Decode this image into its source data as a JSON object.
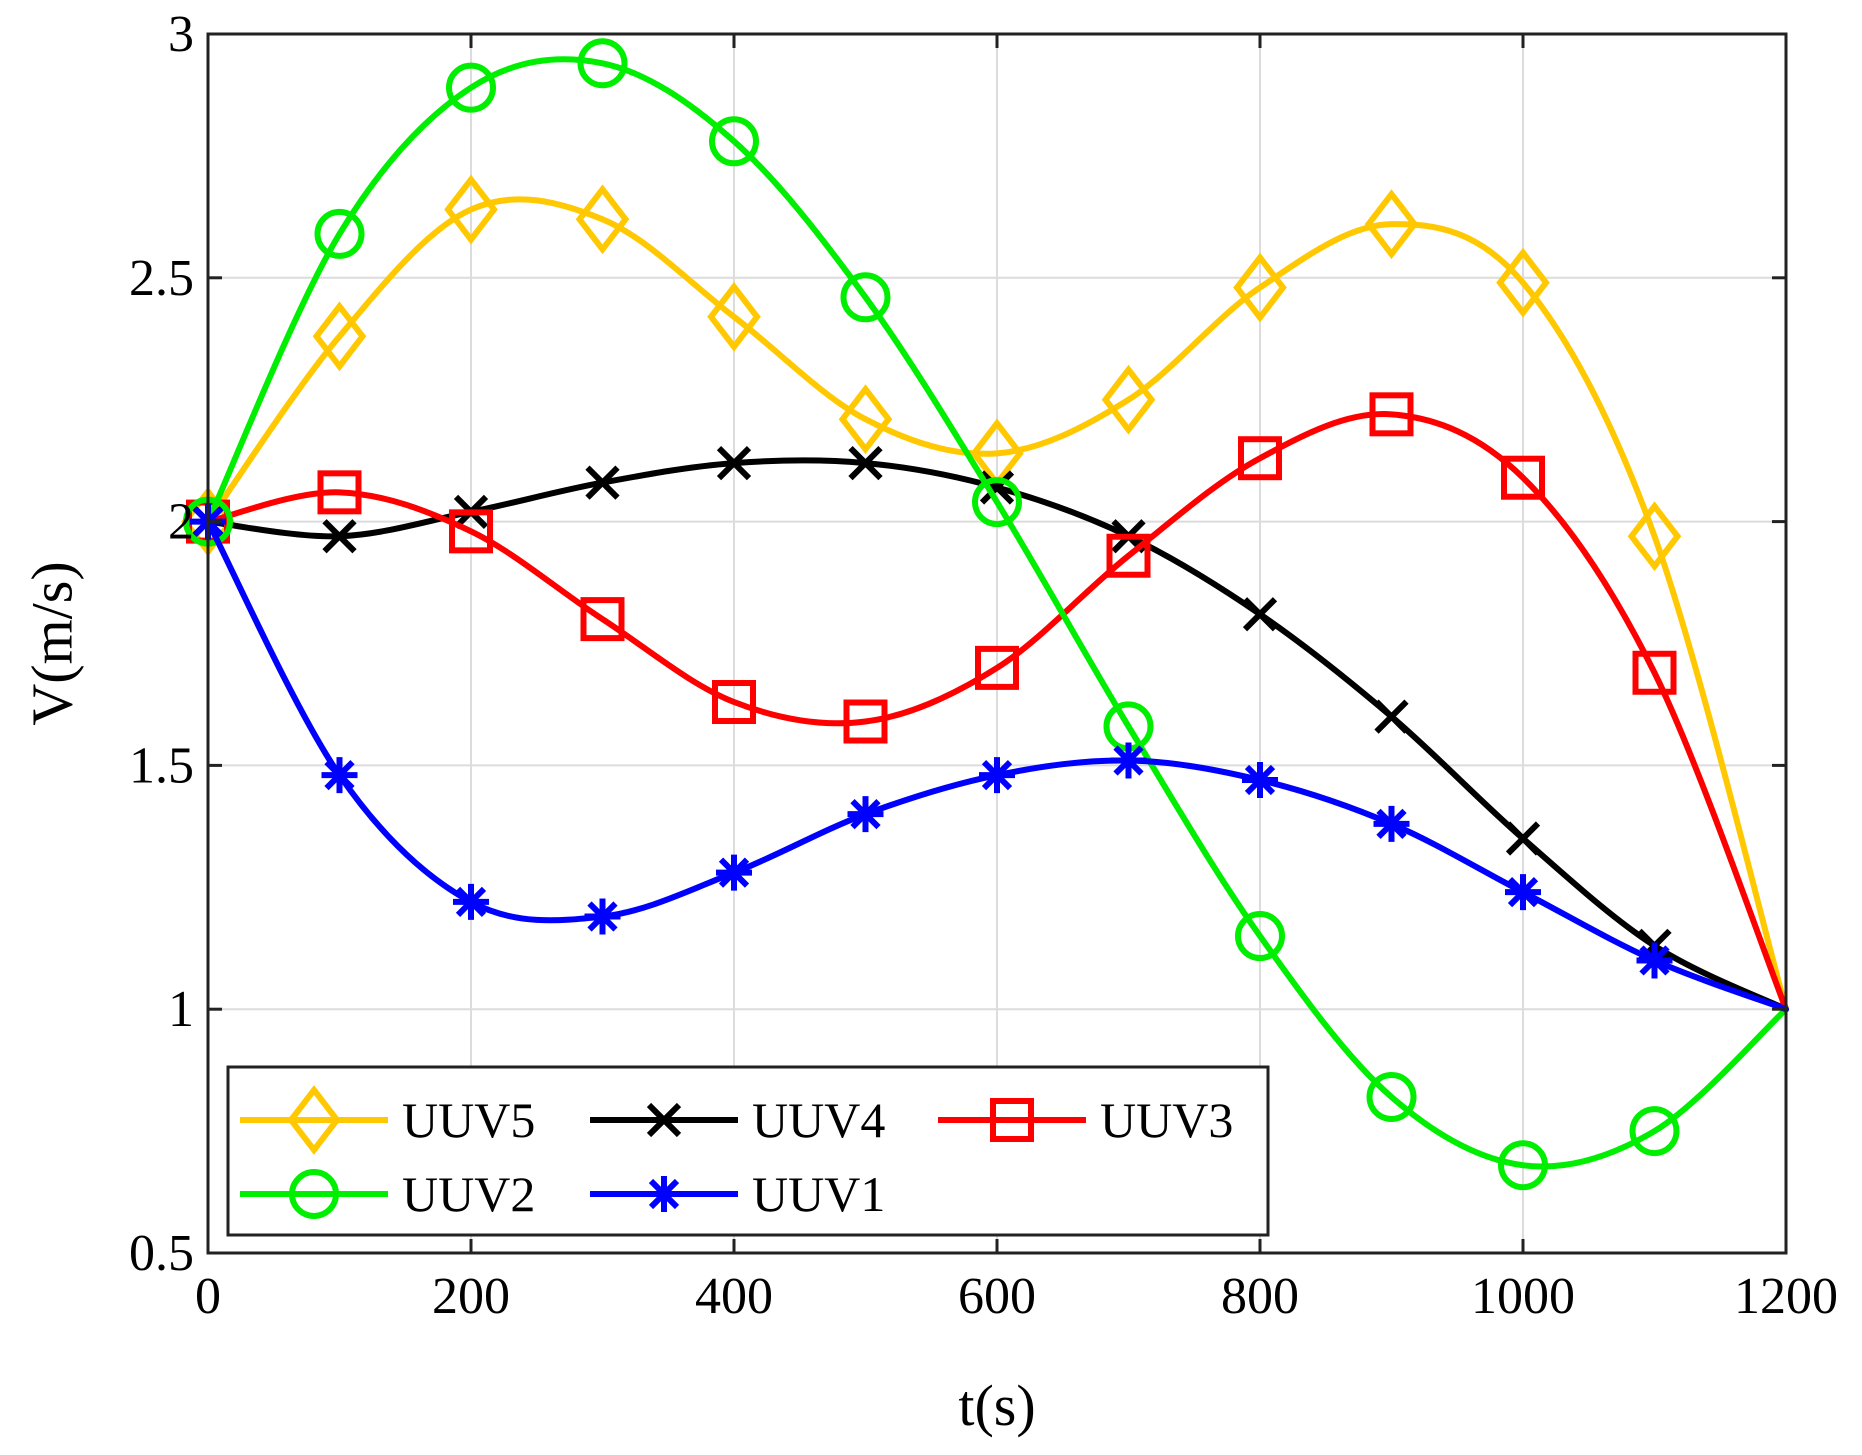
{
  "chart_data": {
    "type": "line",
    "xlabel": "t(s)",
    "ylabel": "V(m/s)",
    "xlim": [
      0,
      1200
    ],
    "ylim": [
      0.5,
      3
    ],
    "xticks": [
      0,
      200,
      400,
      600,
      800,
      1000,
      1200
    ],
    "yticks": [
      0.5,
      1,
      1.5,
      2,
      2.5,
      3
    ],
    "xtick_labels": [
      "0",
      "200",
      "400",
      "600",
      "800",
      "1000",
      "1200"
    ],
    "ytick_labels": [
      "0.5",
      "1",
      "1.5",
      "2",
      "2.5",
      "3"
    ],
    "grid": true,
    "legend_position": "bottom-left",
    "x": [
      0,
      100,
      200,
      300,
      400,
      500,
      600,
      700,
      800,
      900,
      1000,
      1100,
      1200
    ],
    "series": [
      {
        "name": "UUV5",
        "color": "#FFC800",
        "marker": "diamond",
        "values": [
          2.0,
          2.38,
          2.64,
          2.62,
          2.42,
          2.21,
          2.14,
          2.25,
          2.48,
          2.61,
          2.49,
          1.97,
          1.0
        ]
      },
      {
        "name": "UUV4",
        "color": "#000000",
        "marker": "x",
        "values": [
          2.0,
          1.97,
          2.02,
          2.08,
          2.12,
          2.12,
          2.07,
          1.97,
          1.81,
          1.6,
          1.35,
          1.13,
          1.0
        ]
      },
      {
        "name": "UUV3",
        "color": "#FF0000",
        "marker": "square",
        "values": [
          2.0,
          2.06,
          1.98,
          1.8,
          1.63,
          1.59,
          1.7,
          1.93,
          2.13,
          2.22,
          2.09,
          1.69,
          1.0
        ]
      },
      {
        "name": "UUV2",
        "color": "#00EE00",
        "marker": "circle",
        "values": [
          2.0,
          2.59,
          2.89,
          2.94,
          2.78,
          2.46,
          2.04,
          1.58,
          1.15,
          0.82,
          0.68,
          0.75,
          1.0
        ]
      },
      {
        "name": "UUV1",
        "color": "#0000FF",
        "marker": "asterisk",
        "values": [
          2.0,
          1.48,
          1.22,
          1.19,
          1.28,
          1.4,
          1.48,
          1.51,
          1.47,
          1.38,
          1.24,
          1.1,
          1.0
        ]
      }
    ]
  }
}
